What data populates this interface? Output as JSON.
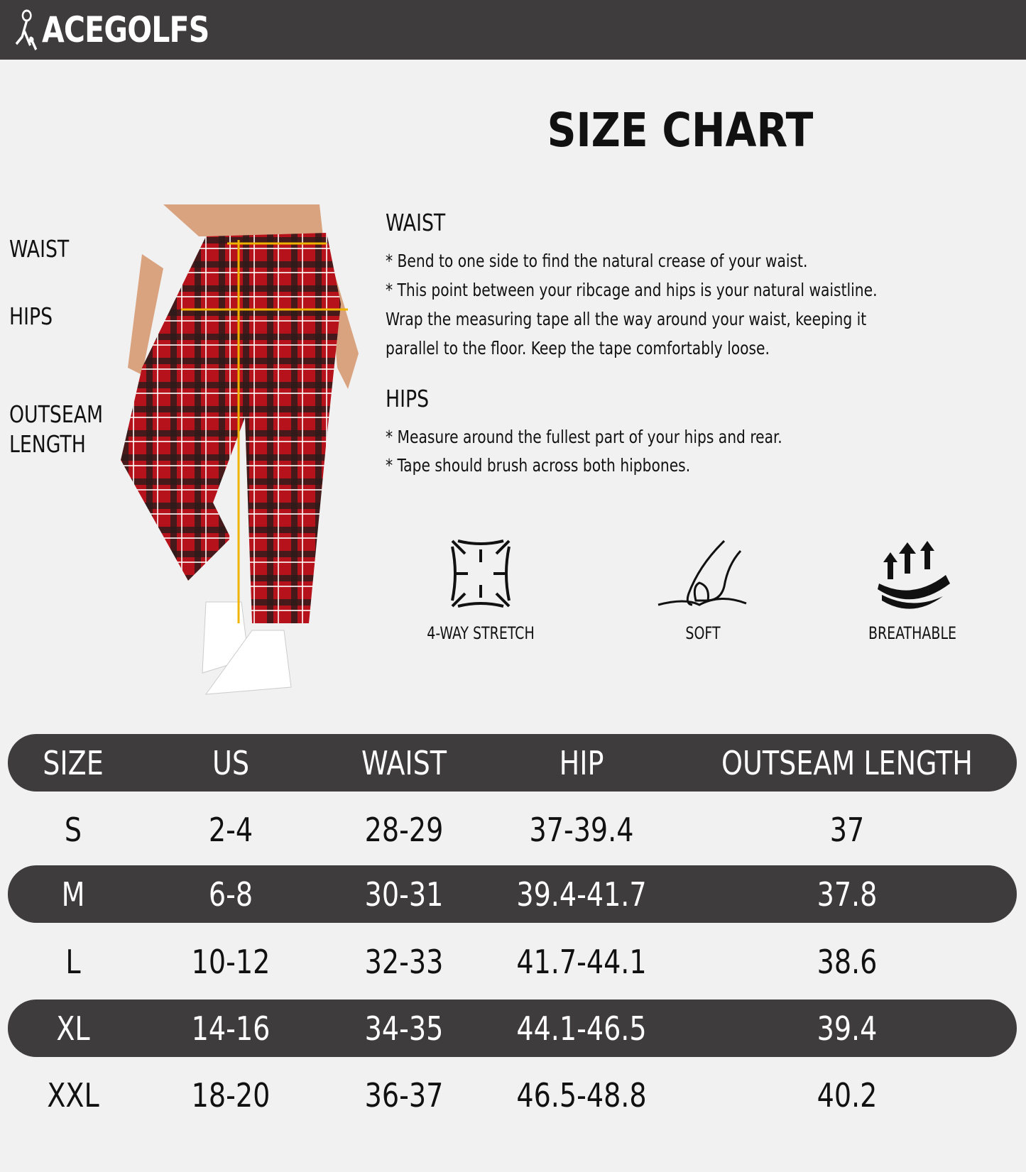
{
  "brand": {
    "logo_text": "ACEGOLFS"
  },
  "title": "SIZE CHART",
  "figure_labels": [
    "WAIST",
    "HIPS",
    "OUTSEAM",
    "LENGTH"
  ],
  "guide": {
    "waist": {
      "heading": "WAIST",
      "lines": [
        "* Bend to one side to find the natural crease of your waist.",
        "* This point between your ribcage and hips is your natural waistline.",
        "Wrap the measuring tape all the way around your waist, keeping it",
        "parallel to the floor. Keep the tape comfortably loose."
      ]
    },
    "hips": {
      "heading": "HIPS",
      "lines": [
        "* Measure around the fullest part of your hips and rear.",
        "* Tape should brush across both hipbones."
      ]
    }
  },
  "features": [
    {
      "label": "4-WAY STRETCH",
      "icon": "stretch-icon"
    },
    {
      "label": "SOFT",
      "icon": "hand-icon"
    },
    {
      "label": "BREATHABLE",
      "icon": "breathable-icon"
    }
  ],
  "table": {
    "headers": [
      "SIZE",
      "US",
      "WAIST",
      "HIP",
      "OUTSEAM LENGTH"
    ],
    "rows": [
      [
        "S",
        "2-4",
        "28-29",
        "37-39.4",
        "37"
      ],
      [
        "M",
        "6-8",
        "30-31",
        "39.4-41.7",
        "37.8"
      ],
      [
        "L",
        "10-12",
        "32-33",
        "41.7-44.1",
        "38.6"
      ],
      [
        "XL",
        "14-16",
        "34-35",
        "44.1-46.5",
        "39.4"
      ],
      [
        "XXL",
        "18-20",
        "36-37",
        "46.5-48.8",
        "40.2"
      ]
    ]
  },
  "colors": {
    "header_bg": "#3e3c3d",
    "background": "#f1f1f1",
    "plaid_red": "#b5121b",
    "tape": "#f0b400"
  }
}
